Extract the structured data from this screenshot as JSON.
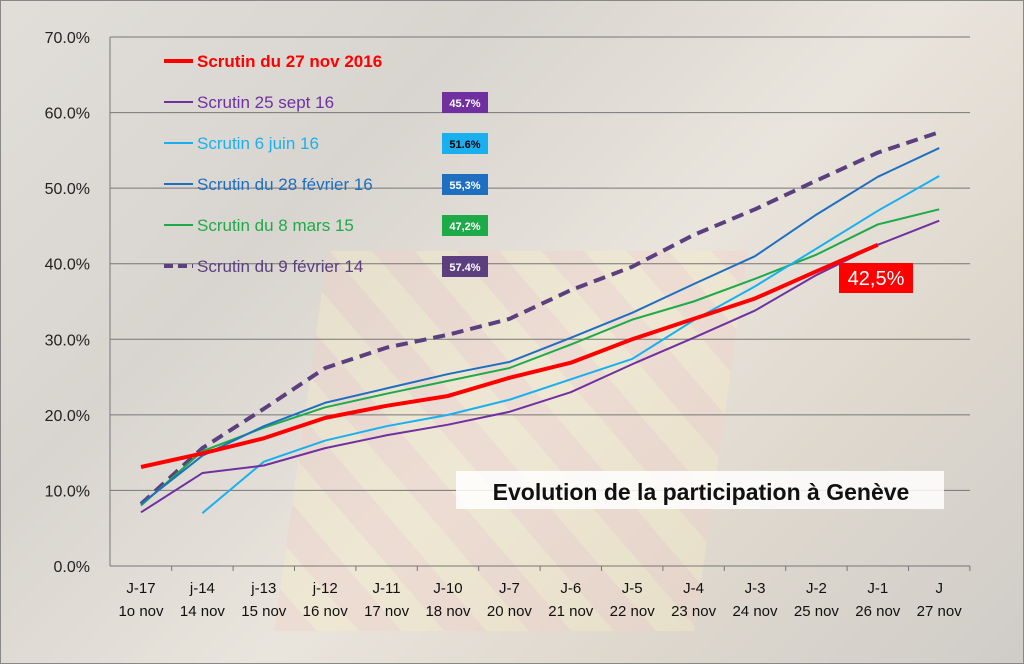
{
  "chart_data": {
    "type": "line",
    "title": "Evolution de la participation à Genève",
    "xlabel": "",
    "ylabel": "",
    "ylim": [
      0,
      70
    ],
    "yticks": [
      "0.0%",
      "10.0%",
      "20.0%",
      "30.0%",
      "40.0%",
      "50.0%",
      "60.0%",
      "70.0%"
    ],
    "grid": true,
    "legend_placement": "top-left",
    "categories": [
      [
        "J-17",
        "1o nov"
      ],
      [
        "j-14",
        "14 nov"
      ],
      [
        "j-13",
        "15 nov"
      ],
      [
        "j-12",
        "16 nov"
      ],
      [
        "J-11",
        "17 nov"
      ],
      [
        "J-10",
        "18 nov"
      ],
      [
        "J-7",
        "20 nov"
      ],
      [
        "J-6",
        "21 nov"
      ],
      [
        "J-5",
        "22 nov"
      ],
      [
        "J-4",
        "23 nov"
      ],
      [
        "J-3",
        "24 nov"
      ],
      [
        "J-2",
        "25 nov"
      ],
      [
        "J-1",
        "26 nov"
      ],
      [
        "J",
        "27 nov"
      ]
    ],
    "series": [
      {
        "name": "Scrutin du 27 nov 2016",
        "color": "#ff0000",
        "dashed": false,
        "bold": true,
        "values": [
          13.1,
          14.9,
          16.9,
          19.6,
          21.2,
          22.5,
          24.9,
          26.9,
          30.0,
          32.7,
          35.4,
          39.0,
          42.5,
          null
        ],
        "end_label": "42,5%"
      },
      {
        "name": "Scrutin 25 sept 16",
        "color": "#7030a0",
        "dashed": false,
        "bold": false,
        "values": [
          7.1,
          12.3,
          13.3,
          15.6,
          17.3,
          18.7,
          20.4,
          23.0,
          26.7,
          30.2,
          33.8,
          38.5,
          42.5,
          45.7
        ],
        "badge": "45.7%",
        "badge_text_color": "#ffffff"
      },
      {
        "name": "Scrutin 6 juin 16",
        "color": "#1ab0f0",
        "dashed": false,
        "bold": false,
        "values": [
          null,
          7.0,
          13.8,
          16.6,
          18.5,
          20.0,
          22.0,
          24.7,
          27.4,
          32.5,
          37.0,
          42.0,
          47.0,
          51.6
        ],
        "badge": "51.6%",
        "badge_text_color": "#000000"
      },
      {
        "name": "Scrutin du 28 février 16",
        "color": "#1f6fc0",
        "dashed": false,
        "bold": false,
        "values": [
          8.2,
          14.6,
          18.5,
          21.6,
          23.5,
          25.4,
          27.0,
          30.2,
          33.5,
          37.3,
          41.0,
          46.5,
          51.5,
          55.3
        ],
        "badge": "55,3%",
        "badge_text_color": "#ffffff"
      },
      {
        "name": "Scrutin du 8 mars 15",
        "color": "#1faa4a",
        "dashed": false,
        "bold": false,
        "values": [
          8.0,
          15.2,
          18.3,
          21.0,
          22.8,
          24.5,
          26.2,
          29.3,
          32.6,
          35.0,
          38.0,
          41.2,
          45.2,
          47.2
        ],
        "badge": "47,2%",
        "badge_text_color": "#ffffff"
      },
      {
        "name": "Scrutin du 9 février 14",
        "color": "#5b3f7e",
        "dashed": true,
        "bold": true,
        "values": [
          8.2,
          15.6,
          20.8,
          26.2,
          28.9,
          30.6,
          32.7,
          36.5,
          39.6,
          43.8,
          47.2,
          51.0,
          54.7,
          57.4
        ],
        "badge": "57.4%",
        "badge_text_color": "#ffffff"
      }
    ]
  }
}
